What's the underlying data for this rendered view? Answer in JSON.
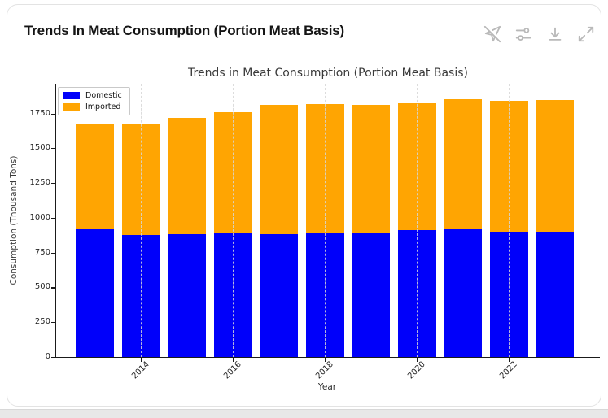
{
  "header": {
    "title": "Trends In Meat Consumption (Portion Meat Basis)",
    "icons": [
      {
        "name": "navigation-off-icon"
      },
      {
        "name": "sliders-icon"
      },
      {
        "name": "download-icon"
      },
      {
        "name": "expand-icon"
      }
    ]
  },
  "chart_data": {
    "type": "bar",
    "stacked": true,
    "title": "Trends in Meat Consumption (Portion Meat Basis)",
    "xlabel": "Year",
    "ylabel": "Consumption (Thousand Tons)",
    "categories": [
      "2013",
      "2014",
      "2015",
      "2016",
      "2017",
      "2018",
      "2019",
      "2020",
      "2021",
      "2022",
      "2023"
    ],
    "series": [
      {
        "name": "Domestic",
        "color": "#0000fa",
        "values": [
          915,
          875,
          885,
          890,
          880,
          890,
          895,
          910,
          915,
          900,
          900
        ]
      },
      {
        "name": "Imported",
        "color": "#ffa502",
        "values": [
          760,
          800,
          835,
          870,
          930,
          930,
          915,
          915,
          935,
          940,
          945
        ]
      }
    ],
    "totals": [
      1675,
      1675,
      1720,
      1760,
      1810,
      1820,
      1810,
      1825,
      1850,
      1840,
      1845
    ],
    "y_ticks": [
      0,
      250,
      500,
      750,
      1000,
      1250,
      1500,
      1750
    ],
    "x_tick_labels": [
      "2014",
      "2016",
      "2018",
      "2020",
      "2022"
    ],
    "ylim": [
      0,
      1960
    ],
    "grid": "vertical dashed at labeled years",
    "legend_position": "upper left"
  },
  "colors": {
    "domestic": "#0000fa",
    "imported": "#ffa502",
    "icon_gray": "#b9b9b9",
    "card_border": "#e3e3e3",
    "axis": "#1a1a1a"
  }
}
